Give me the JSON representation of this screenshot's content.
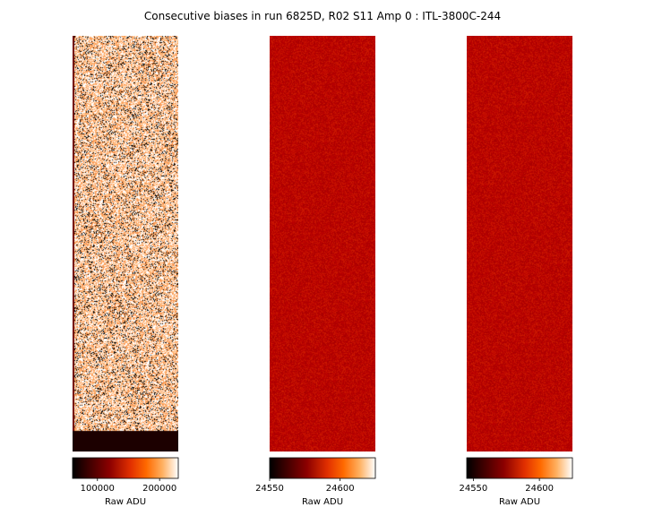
{
  "chart_data": {
    "type": "heatmap",
    "title": "Consecutive biases in run 6825D, R02 S11 Amp 0 : ITL-3800C-244",
    "colormap": "gist_heat",
    "panels": [
      {
        "name": "bias-1",
        "colorbar_label": "Raw ADU",
        "colorbar_range": [
          60000,
          230000
        ],
        "colorbar_ticks": [
          {
            "value": 100000,
            "label": "100000"
          },
          {
            "value": 200000,
            "label": "200000"
          }
        ],
        "texture": "saturated-noise"
      },
      {
        "name": "bias-2",
        "colorbar_label": "Raw ADU",
        "colorbar_range": [
          24550,
          24625
        ],
        "colorbar_ticks": [
          {
            "value": 24550,
            "label": "24550"
          },
          {
            "value": 24600,
            "label": "24600"
          }
        ],
        "texture": "uniform-noise"
      },
      {
        "name": "bias-3",
        "colorbar_label": "Raw ADU",
        "colorbar_range": [
          24545,
          24625
        ],
        "colorbar_ticks": [
          {
            "value": 24550,
            "label": "24550"
          },
          {
            "value": 24600,
            "label": "24600"
          }
        ],
        "texture": "uniform-noise"
      }
    ]
  }
}
